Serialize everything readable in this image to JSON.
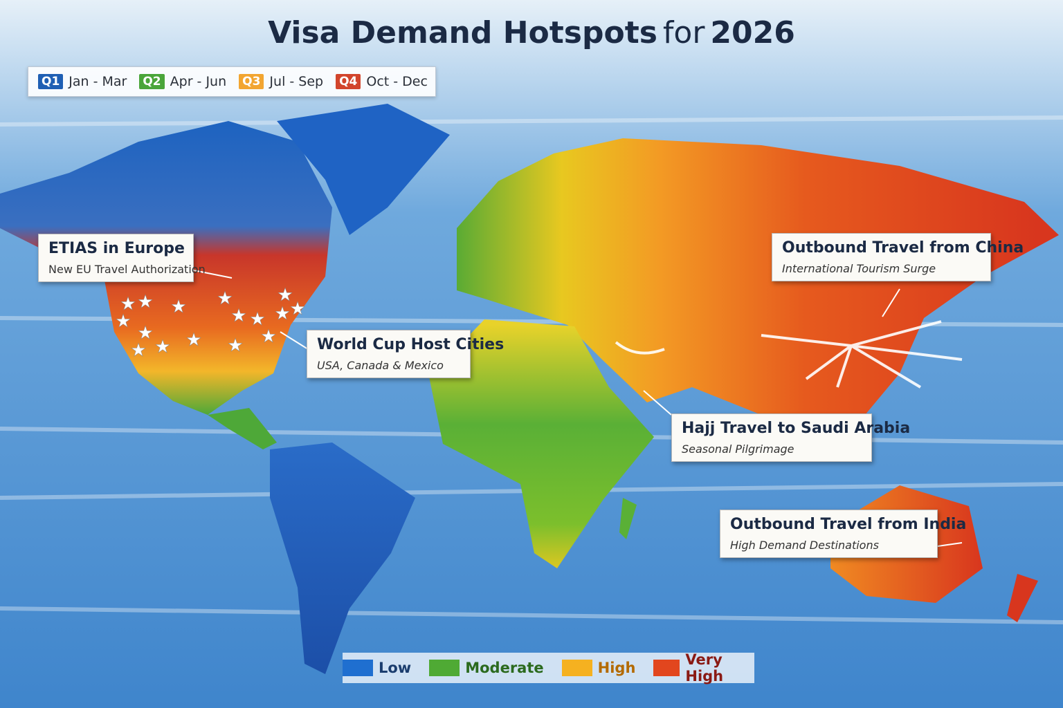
{
  "title": {
    "lead": "Visa Demand Hotspots",
    "joiner": "for",
    "year": "2026"
  },
  "quarters": [
    {
      "code": "Q1",
      "label": "Jan - Mar",
      "color": "#1f5fb4"
    },
    {
      "code": "Q2",
      "label": "Apr - Jun",
      "color": "#4aa53a"
    },
    {
      "code": "Q3",
      "label": "Jul - Sep",
      "color": "#f2a531"
    },
    {
      "code": "Q4",
      "label": "Oct - Dec",
      "color": "#d2452c"
    }
  ],
  "callouts": [
    {
      "title": "ETIAS in Europe",
      "subtitle": "New EU Travel Authorization"
    },
    {
      "title": "World Cup Host Cities",
      "subtitle": "USA, Canada & Mexico"
    },
    {
      "title": "Outbound Travel from China",
      "subtitle": "International Tourism Surge"
    },
    {
      "title": "Hajj Travel to Saudi Arabia",
      "subtitle": "Seasonal Pilgrimage"
    },
    {
      "title": "Outbound Travel from India",
      "subtitle": "High Demand Destinations"
    }
  ],
  "legend": [
    {
      "label": "Low",
      "color": "#1f6fd0"
    },
    {
      "label": "Moderate",
      "color": "#4faa34"
    },
    {
      "label": "High",
      "color": "#f5b120"
    },
    {
      "label": "Very High",
      "color": "#e2461e"
    }
  ]
}
